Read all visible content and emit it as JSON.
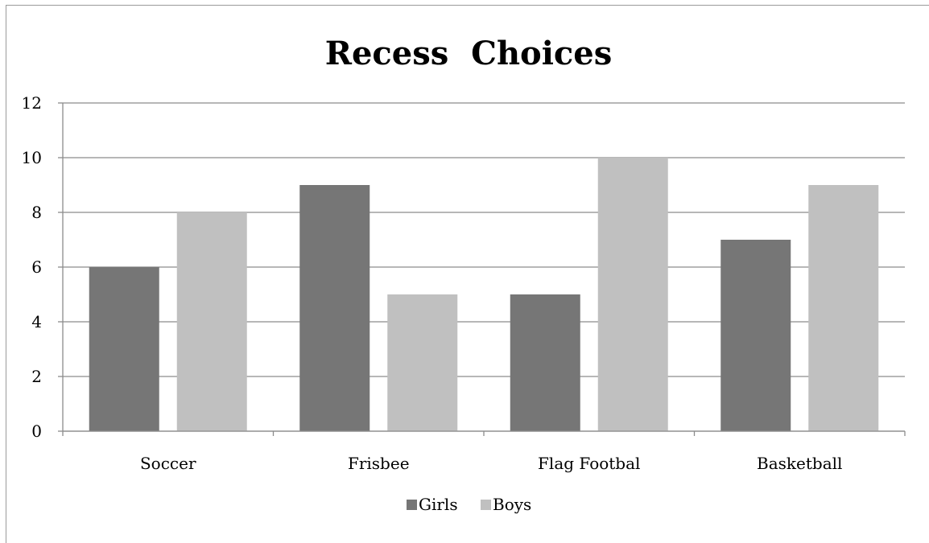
{
  "chart_data": {
    "type": "bar",
    "title": "Recess  Choices",
    "categories": [
      "Soccer",
      "Frisbee",
      "Flag Footbal",
      "Basketball"
    ],
    "series": [
      {
        "name": "Girls",
        "values": [
          6,
          9,
          5,
          7
        ],
        "color": "#767676"
      },
      {
        "name": "Boys",
        "values": [
          8,
          5,
          10,
          9
        ],
        "color": "#c0c0c0"
      }
    ],
    "yticks": [
      "0",
      "2",
      "4",
      "6",
      "8",
      "10",
      "12"
    ],
    "ylim": [
      0,
      12
    ],
    "xlabel": "",
    "ylabel": "",
    "grid": true,
    "legend_position": "bottom"
  }
}
